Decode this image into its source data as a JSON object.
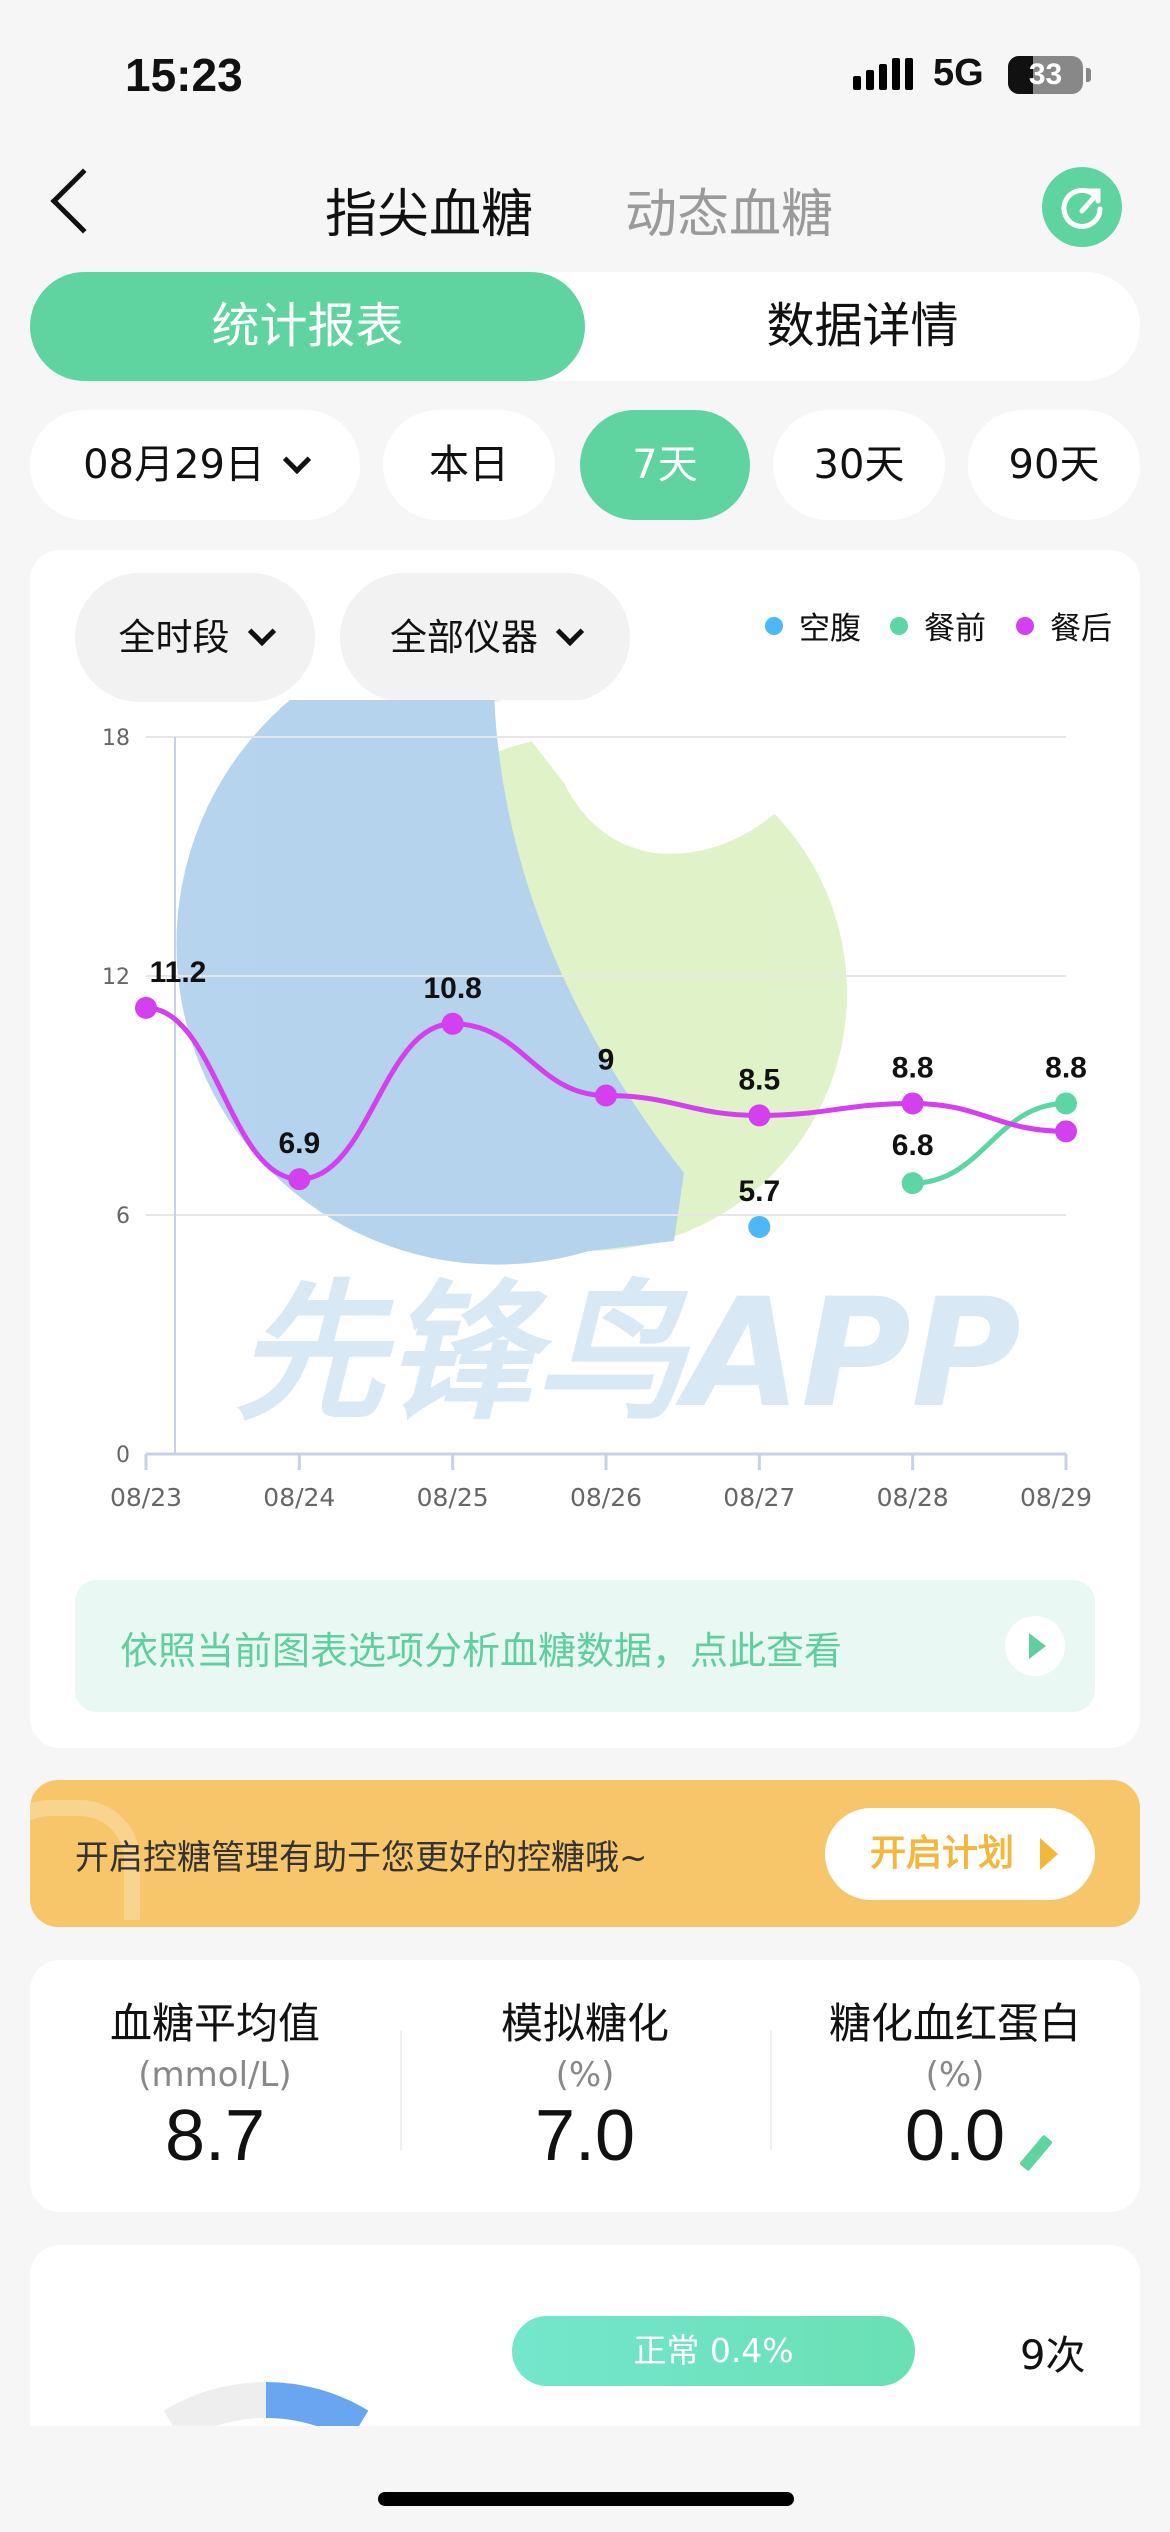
{
  "status_bar": {
    "time": "15:23",
    "network": "5G",
    "battery": "33"
  },
  "header": {
    "tabs": [
      {
        "label": "指尖血糖",
        "active": true
      },
      {
        "label": "动态血糖",
        "active": false
      }
    ],
    "refresh_icon": "refresh-icon"
  },
  "segment": {
    "items": [
      {
        "label": "统计报表",
        "active": true
      },
      {
        "label": "数据详情",
        "active": false
      }
    ]
  },
  "date_filter": {
    "date": "08月29日",
    "ranges": [
      {
        "label": "本日"
      },
      {
        "label": "7天",
        "active": true
      },
      {
        "label": "30天"
      },
      {
        "label": "90天"
      }
    ]
  },
  "chart_filters": {
    "period": "全时段",
    "device": "全部仪器"
  },
  "colors": {
    "accent": "#5fd3a0",
    "fasting": "#4db8f5",
    "before_meal": "#5dd6a5",
    "after_meal": "#d43ff0",
    "orange": "#f7c66a"
  },
  "chart_data": {
    "type": "line",
    "categories": [
      "08/23",
      "08/24",
      "08/25",
      "08/26",
      "08/27",
      "08/28",
      "08/29"
    ],
    "ylim": [
      0,
      18
    ],
    "yticks": [
      "0",
      "6",
      "12",
      "18"
    ],
    "grid": true,
    "legend_position": "top-right",
    "series": [
      {
        "name": "空腹",
        "color": "#4db8f5",
        "values": [
          null,
          null,
          null,
          null,
          5.7,
          null,
          null
        ],
        "labels": [
          null,
          null,
          null,
          null,
          "5.7",
          null,
          null
        ]
      },
      {
        "name": "餐前",
        "color": "#5dd6a5",
        "values": [
          null,
          null,
          null,
          null,
          null,
          6.8,
          8.8
        ],
        "labels": [
          null,
          null,
          null,
          null,
          null,
          "6.8",
          "8.8"
        ]
      },
      {
        "name": "餐后",
        "color": "#d43ff0",
        "values": [
          11.2,
          6.9,
          10.8,
          9,
          8.5,
          8.8,
          8.1
        ],
        "labels": [
          "11.2",
          "6.9",
          "10.8",
          "9",
          "8.5",
          "8.8",
          null
        ]
      }
    ]
  },
  "watermark": "先锋鸟APP",
  "analysis": {
    "text": "依照当前图表选项分析血糖数据，点此查看"
  },
  "plan_banner": {
    "text": "开启控糖管理有助于您更好的控糖哦~",
    "button": "开启计划"
  },
  "stats": [
    {
      "title": "血糖平均值",
      "unit": "(mmol/L)",
      "value": "8.7"
    },
    {
      "title": "模拟糖化",
      "unit": "(%)",
      "value": "7.0"
    },
    {
      "title": "糖化血红蛋白",
      "unit": "(%)",
      "value": "0.0"
    }
  ],
  "distribution": {
    "label": "正常 0.4%",
    "count": "9次"
  }
}
